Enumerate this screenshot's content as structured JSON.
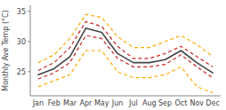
{
  "chart_data": {
    "type": "line",
    "categories": [
      "Jan",
      "Feb",
      "Mar",
      "Apr",
      "May",
      "Jun",
      "Jul",
      "Aug",
      "Sep",
      "Oct",
      "Nov",
      "Dec"
    ],
    "series": [
      {
        "color": "#ffaa00",
        "line_style": "dashed",
        "values": [
          22.5,
          23.5,
          24.5,
          28.5,
          28.5,
          25.0,
          24.0,
          24.0,
          24.5,
          25.8,
          22.5,
          21.5
        ]
      },
      {
        "color": "#ffaa00",
        "line_style": "dashed",
        "values": [
          26.5,
          27.8,
          30.5,
          34.5,
          34.0,
          30.8,
          29.0,
          29.0,
          30.0,
          31.0,
          29.5,
          27.5
        ]
      },
      {
        "color": "#cc2222",
        "line_style": "dashed",
        "values": [
          23.8,
          24.8,
          26.5,
          31.0,
          30.5,
          27.2,
          25.8,
          25.8,
          26.2,
          27.8,
          25.8,
          24.0
        ]
      },
      {
        "color": "#cc2222",
        "line_style": "dashed",
        "values": [
          25.2,
          26.5,
          29.0,
          33.3,
          32.5,
          29.2,
          27.2,
          27.2,
          28.0,
          29.2,
          27.5,
          25.8
        ]
      },
      {
        "color": "#444444",
        "line_style": "solid",
        "values": [
          24.5,
          25.5,
          27.5,
          32.2,
          31.5,
          28.0,
          26.5,
          26.5,
          27.0,
          28.5,
          26.5,
          24.8
        ]
      }
    ],
    "ylabel": "Monthly Ave Temp (°C)",
    "ylim": [
      21,
      36
    ],
    "yticks": [
      25,
      30,
      35
    ],
    "grid": false
  }
}
